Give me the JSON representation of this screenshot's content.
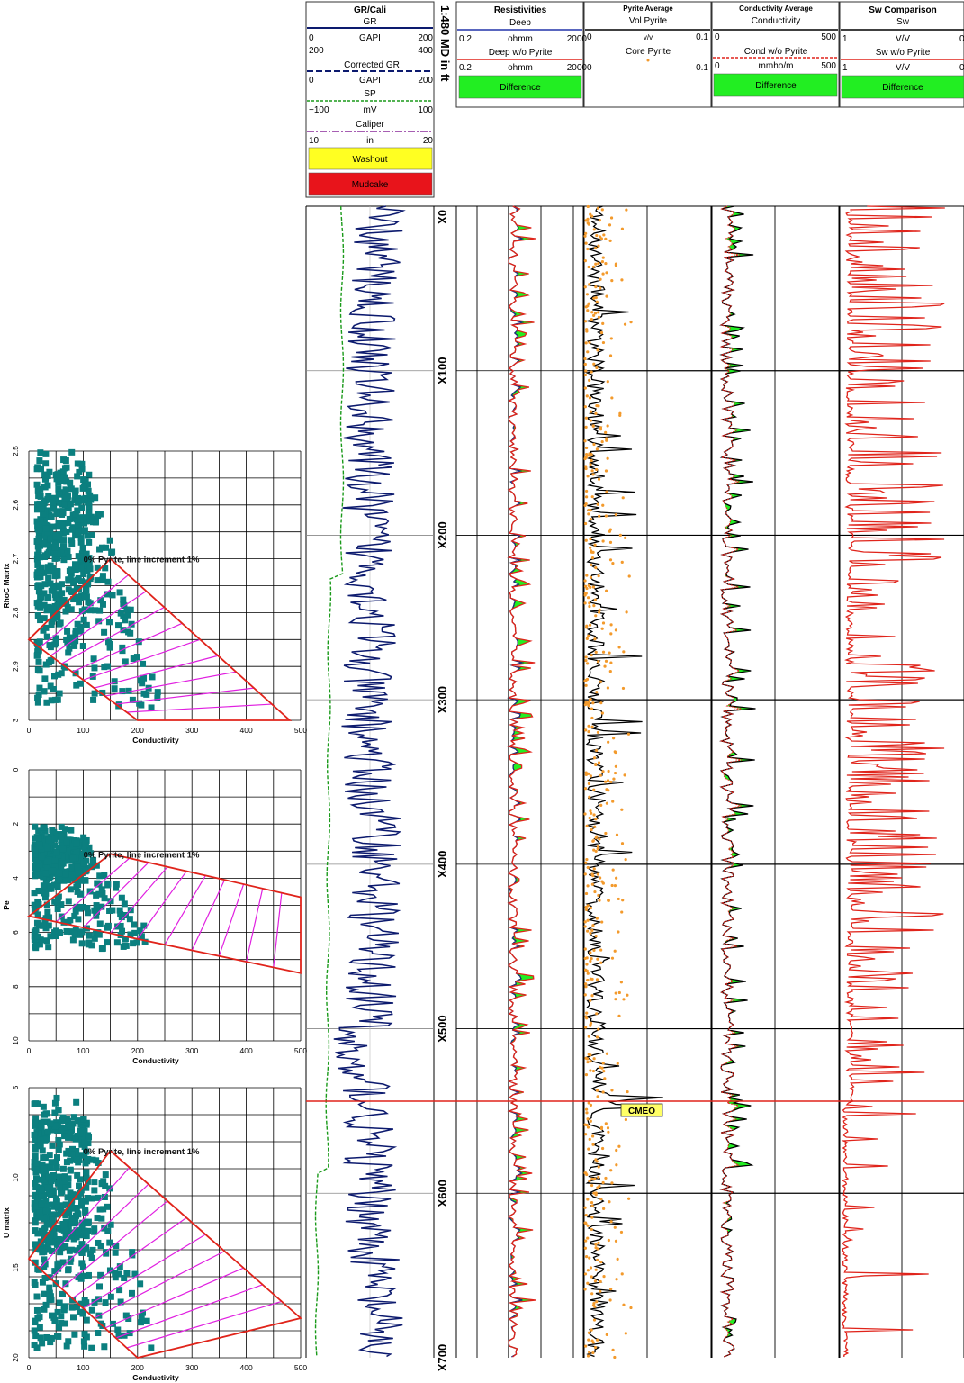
{
  "depth_scale_label": "1:480 MD in ft",
  "depth_ticks": [
    "X0",
    "X100",
    "X200",
    "X300",
    "X400",
    "X500",
    "X600",
    "X700"
  ],
  "marker_label": "CMEO",
  "header": {
    "grcali": {
      "title": "GR/Cali",
      "gr_name": "GR",
      "gr_unit": "GAPI",
      "gr_min": "0",
      "gr_max": "200",
      "gr_min2": "200",
      "gr_max2": "400",
      "cgr_name": "Corrected GR",
      "cgr_unit": "GAPI",
      "cgr_min": "0",
      "cgr_max": "200",
      "sp_name": "SP",
      "sp_unit": "mV",
      "sp_min": "−100",
      "sp_max": "100",
      "cal_name": "Caliper",
      "cal_unit": "in",
      "cal_min": "10",
      "cal_max": "20",
      "washout": "Washout",
      "mudcake": "Mudcake"
    },
    "resist": {
      "title": "Resistivities",
      "deep_name": "Deep",
      "deep_unit": "ohmm",
      "deep_min": "0.2",
      "deep_max": "2000",
      "wo_name": "Deep w/o Pyrite",
      "wo_unit": "ohmm",
      "wo_min": "0.2",
      "wo_max": "2000",
      "diff": "Difference"
    },
    "pyrite": {
      "title": "Pyrite Average",
      "vol_name": "Vol Pyrite",
      "vol_unit": "v/v",
      "vol_min": "0",
      "vol_max": "0.1",
      "core_name": "Core Pyrite",
      "core_min": "0",
      "core_max": "0.1"
    },
    "cond": {
      "title": "Conductivity Average",
      "c_name": "Conductivity",
      "c_min": "0",
      "c_max": "500",
      "wo_name": "Cond w/o Pyrite",
      "wo_unit": "mmho/m",
      "wo_min": "0",
      "wo_max": "500",
      "diff": "Difference"
    },
    "sw": {
      "title": "Sw Comparison",
      "sw_name": "Sw",
      "sw_unit": "V/V",
      "sw_min": "1",
      "sw_max": "0",
      "wo_name": "Sw w/o Pyrite",
      "wo_unit": "V/V",
      "wo_min": "1",
      "wo_max": "0",
      "diff": "Difference"
    }
  },
  "colors": {
    "teal": "#0b7f7f",
    "navy": "#0c1a6e",
    "red": "#e0241b",
    "green": "#22ee22",
    "orange": "#f39a2c",
    "magenta": "#e020e0",
    "sp_green": "#1a9a1a",
    "yellow": "#ffff22"
  },
  "chart_data": [
    {
      "type": "scatter",
      "ylabel": "RhoC Matrix",
      "xlabel": "Conductivity",
      "annotation": "0% Pyrite, line increment 1%",
      "xlim": [
        0,
        500
      ],
      "ylim": [
        2.5,
        3.0
      ],
      "y_inverted": true,
      "xticks": [
        "0",
        "100",
        "200",
        "300",
        "400",
        "500"
      ],
      "yticks": [
        "2.5",
        "2.6",
        "2.7",
        "2.8",
        "2.9",
        "3"
      ],
      "envelope": [
        [
          0,
          2.85
        ],
        [
          150,
          2.7
        ],
        [
          480,
          3.0
        ],
        [
          200,
          3.0
        ]
      ],
      "cluster": {
        "x_range": [
          15,
          250
        ],
        "y_range": [
          2.5,
          2.98
        ]
      }
    },
    {
      "type": "scatter",
      "ylabel": "Pe",
      "xlabel": "Conductivity",
      "annotation": "0% Pyrite, line increment 1%",
      "xlim": [
        0,
        500
      ],
      "ylim": [
        0,
        10
      ],
      "y_inverted": true,
      "xticks": [
        "0",
        "100",
        "200",
        "300",
        "400",
        "500"
      ],
      "yticks": [
        "0",
        "2",
        "4",
        "6",
        "8",
        "10"
      ],
      "envelope": [
        [
          0,
          5.4
        ],
        [
          150,
          3.1
        ],
        [
          500,
          4.7
        ],
        [
          500,
          7.5
        ]
      ],
      "cluster": {
        "x_range": [
          10,
          240
        ],
        "y_range": [
          2.1,
          6.6
        ]
      }
    },
    {
      "type": "scatter",
      "ylabel": "U matrix",
      "xlabel": "Conductivity",
      "annotation": "0% Pyrite, line increment 1%",
      "xlim": [
        0,
        500
      ],
      "ylim": [
        5,
        20
      ],
      "y_inverted": true,
      "xticks": [
        "0",
        "100",
        "200",
        "300",
        "400",
        "500"
      ],
      "yticks": [
        "5",
        "10",
        "15",
        "20"
      ],
      "envelope": [
        [
          0,
          14.5
        ],
        [
          150,
          8.5
        ],
        [
          500,
          17.8
        ],
        [
          200,
          20
        ]
      ],
      "cluster": {
        "x_range": [
          10,
          250
        ],
        "y_range": [
          5.5,
          19.5
        ]
      }
    }
  ]
}
